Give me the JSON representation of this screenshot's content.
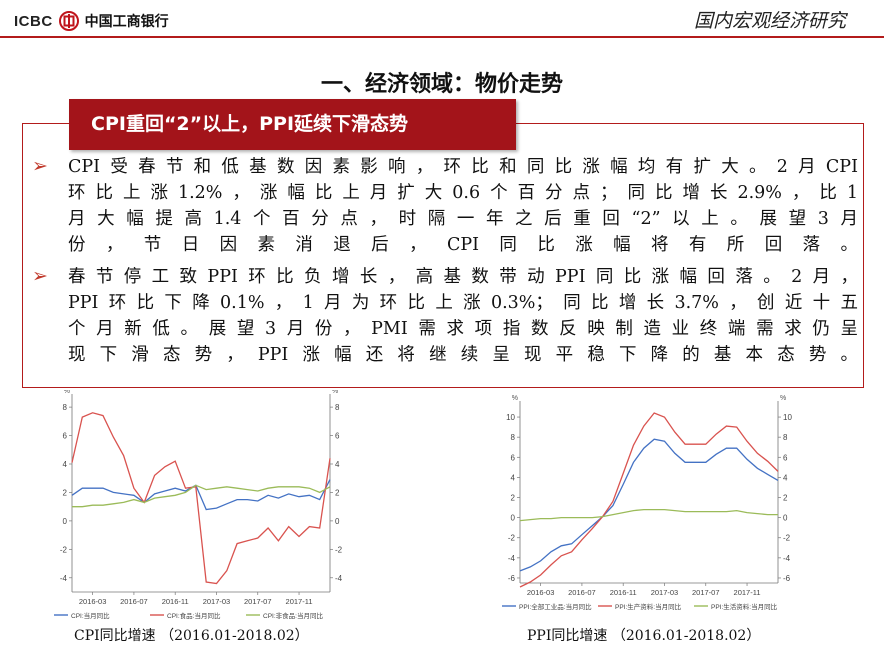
{
  "header": {
    "logo_text": "ICBC",
    "bank_name": "中国工商银行",
    "section": "国内宏观经济研究"
  },
  "page_title": "一、经济领域：物价走势",
  "banner": "CPI重回“2”以上，PPI延续下滑态势",
  "bullets": [
    {
      "lines": [
        "CPI受春节和低基数因素影响，环比和同比涨幅均有扩大。2月CPI",
        "环比上涨1.2%，涨幅比上月扩大0.6个百分点；同比增长2.9%，比1",
        "月大幅提高1.4个百分点，时隔一年之后重回“2”以上。展望3月",
        "份，节日因素消退后，CPI同比涨幅将有所回落。"
      ]
    },
    {
      "lines": [
        "春节停工致PPI环比负增长，高基数带动PPI同比涨幅回落。2月，",
        "PPI环比下降0.1%，1月为环比上涨0.3%；同比增长3.7%，创近十五",
        "个月新低。展望3月份，PMI需求项指数反映制造业终端需求仍呈",
        "现下滑态势，PPI涨幅还将继续呈现平稳下降的基本态势。"
      ]
    }
  ],
  "chart_data": [
    {
      "type": "line",
      "caption": "CPI同比增速 （2016.01-2018.02）",
      "unit_left": "%",
      "unit_right": "%",
      "x_tick_labels": [
        "2016-03",
        "2016-07",
        "2016-11",
        "2017-03",
        "2017-07",
        "2017-11"
      ],
      "x_tick_index": [
        2,
        6,
        10,
        14,
        18,
        22
      ],
      "n_points": 26,
      "ylim": [
        -5,
        8.5
      ],
      "y_ticks": [
        -4,
        -2,
        0,
        2,
        4,
        6,
        8
      ],
      "series": [
        {
          "name": "CPI:当月同比",
          "color": "#4472c4",
          "values": [
            1.8,
            2.3,
            2.3,
            2.3,
            2.0,
            1.9,
            1.8,
            1.3,
            1.9,
            2.1,
            2.3,
            2.1,
            2.5,
            0.8,
            0.9,
            1.2,
            1.5,
            1.5,
            1.4,
            1.8,
            1.6,
            1.9,
            1.7,
            1.8,
            1.5,
            2.9
          ]
        },
        {
          "name": "CPI:食品:当月同比",
          "color": "#d9534f",
          "values": [
            4.1,
            7.3,
            7.6,
            7.4,
            5.9,
            4.6,
            2.3,
            1.3,
            3.2,
            3.8,
            4.2,
            2.3,
            2.4,
            -4.3,
            -4.4,
            -3.5,
            -1.6,
            -1.4,
            -1.2,
            -0.5,
            -1.4,
            -0.4,
            -1.1,
            -0.4,
            -0.5,
            4.4
          ]
        },
        {
          "name": "CPI:非食品:当月同比",
          "color": "#9bbb59",
          "values": [
            1.0,
            1.0,
            1.1,
            1.1,
            1.2,
            1.3,
            1.5,
            1.3,
            1.6,
            1.7,
            1.8,
            2.0,
            2.5,
            2.2,
            2.3,
            2.4,
            2.3,
            2.2,
            2.1,
            2.3,
            2.4,
            2.4,
            2.4,
            2.3,
            2.0,
            2.4
          ]
        }
      ]
    },
    {
      "type": "line",
      "caption": "PPI同比增速 （2016.01-2018.02）",
      "unit_left": "%",
      "unit_right": "%",
      "x_tick_labels": [
        "2016-03",
        "2016-07",
        "2016-11",
        "2017-03",
        "2017-07",
        "2017-11"
      ],
      "x_tick_index": [
        2,
        6,
        10,
        14,
        18,
        22
      ],
      "n_points": 26,
      "ylim": [
        -6.5,
        11
      ],
      "y_ticks": [
        -6,
        -4,
        -2,
        0,
        2,
        4,
        6,
        8,
        10
      ],
      "series": [
        {
          "name": "PPI:全部工业品:当月同比",
          "color": "#4472c4",
          "values": [
            -5.3,
            -4.9,
            -4.3,
            -3.4,
            -2.8,
            -2.6,
            -1.7,
            -0.8,
            0.1,
            1.2,
            3.3,
            5.5,
            6.9,
            7.8,
            7.6,
            6.4,
            5.5,
            5.5,
            5.5,
            6.3,
            6.9,
            6.9,
            5.8,
            4.9,
            4.3,
            3.7
          ]
        },
        {
          "name": "PPI:生产资料:当月同比",
          "color": "#d9534f",
          "values": [
            -6.9,
            -6.4,
            -5.7,
            -4.7,
            -3.8,
            -3.4,
            -2.2,
            -1.1,
            0.1,
            1.6,
            4.4,
            7.2,
            9.1,
            10.4,
            10.0,
            8.5,
            7.3,
            7.3,
            7.3,
            8.3,
            9.1,
            9.0,
            7.6,
            6.4,
            5.6,
            4.6
          ]
        },
        {
          "name": "PPI:生活资料:当月同比",
          "color": "#9bbb59",
          "values": [
            -0.3,
            -0.2,
            -0.1,
            -0.1,
            0.0,
            0.0,
            0.0,
            0.0,
            0.1,
            0.3,
            0.5,
            0.7,
            0.8,
            0.8,
            0.8,
            0.7,
            0.6,
            0.6,
            0.6,
            0.6,
            0.6,
            0.7,
            0.5,
            0.4,
            0.3,
            0.3
          ]
        }
      ]
    }
  ]
}
